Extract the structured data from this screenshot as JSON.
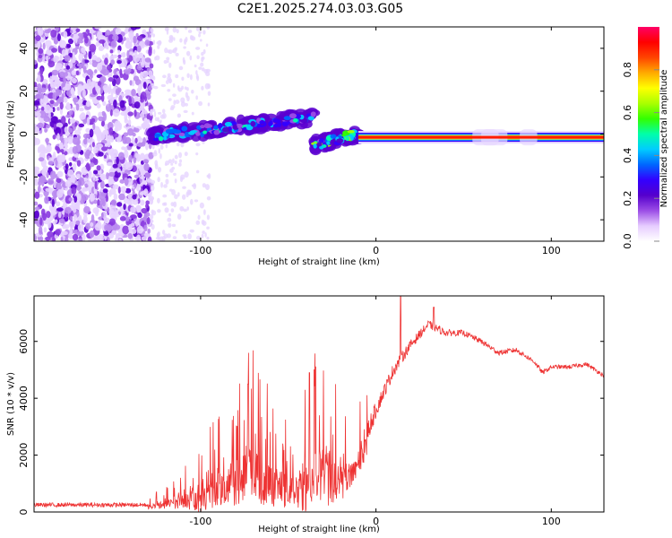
{
  "title": "C2E1.2025.274.03.03.G05",
  "chart_data": [
    {
      "type": "heatmap",
      "name": "spectrogram",
      "xlabel": "Height of straight line (km)",
      "ylabel": "Frequency (Hz)",
      "xlim": [
        -195,
        130
      ],
      "ylim": [
        -50,
        50
      ],
      "xticks": [
        -100,
        0,
        100
      ],
      "yticks": [
        -40,
        -20,
        0,
        20,
        40
      ],
      "colorbar": {
        "label": "Normalized spectral amplitude",
        "ticks": [
          0.0,
          0.2,
          0.4,
          0.6,
          0.8
        ],
        "range": [
          0,
          1
        ],
        "colors": [
          "#ffffff",
          "#e6ccff",
          "#9b4de6",
          "#5500cc",
          "#3300ff",
          "#0066ff",
          "#00ccff",
          "#00ffaa",
          "#33ff00",
          "#aaff00",
          "#ffff00",
          "#ffaa00",
          "#ff4400",
          "#ff0000",
          "#ff0066"
        ]
      },
      "features": [
        {
          "segment": "noise",
          "x_range": [
            -195,
            -128
          ],
          "freq_range": [
            -50,
            50
          ],
          "amplitude": 0.15
        },
        {
          "segment": "weak_scatter",
          "x_range": [
            -128,
            -95
          ],
          "freq_range": [
            -50,
            50
          ],
          "amplitude": 0.05
        },
        {
          "segment": "onset_signal",
          "x_range": [
            -128,
            -35
          ],
          "freq_start": -1,
          "freq_end": 8,
          "amplitude": 0.35
        },
        {
          "segment": "transition",
          "x_range": [
            -35,
            -10
          ],
          "freq_start": -5,
          "freq_end": 0,
          "amplitude": 0.45
        },
        {
          "segment": "steady_carrier",
          "x_range": [
            -10,
            130
          ],
          "freq": -1.5,
          "amplitude": 0.9
        }
      ]
    },
    {
      "type": "line",
      "name": "snr",
      "xlabel": "Height of straight line (km)",
      "ylabel": "SNR (10 * v/v)",
      "xlim": [
        -195,
        130
      ],
      "ylim": [
        0,
        7600
      ],
      "xticks": [
        -100,
        0,
        100
      ],
      "yticks": [
        0,
        2000,
        4000,
        6000
      ],
      "color": "#ee3333",
      "series": [
        {
          "name": "SNR",
          "x": [
            -195,
            -160,
            -130,
            -120,
            -110,
            -100,
            -90,
            -80,
            -70,
            -60,
            -50,
            -40,
            -30,
            -20,
            -10,
            -5,
            0,
            5,
            10,
            20,
            30,
            40,
            50,
            60,
            70,
            80,
            90,
            95,
            100,
            110,
            120,
            130
          ],
          "y": [
            250,
            250,
            250,
            400,
            600,
            900,
            1400,
            1900,
            2300,
            1700,
            1300,
            1900,
            2400,
            1600,
            2200,
            2800,
            3600,
            4300,
            5000,
            5900,
            6600,
            6300,
            6300,
            6000,
            5600,
            5700,
            5300,
            4900,
            5100,
            5100,
            5200,
            4800
          ],
          "noise": [
            150,
            150,
            150,
            300,
            500,
            900,
            1300,
            1700,
            2000,
            1500,
            1300,
            1900,
            2200,
            1300,
            900,
            800,
            600,
            500,
            500,
            350,
            300,
            250,
            200,
            200,
            180,
            180,
            160,
            160,
            150,
            150,
            150,
            150
          ],
          "peaks": [
            {
              "x": 14,
              "y": 7600
            },
            {
              "x": 33,
              "y": 7200
            },
            {
              "x": -73,
              "y": 4500
            },
            {
              "x": -38,
              "y": 4900
            }
          ]
        }
      ]
    }
  ]
}
